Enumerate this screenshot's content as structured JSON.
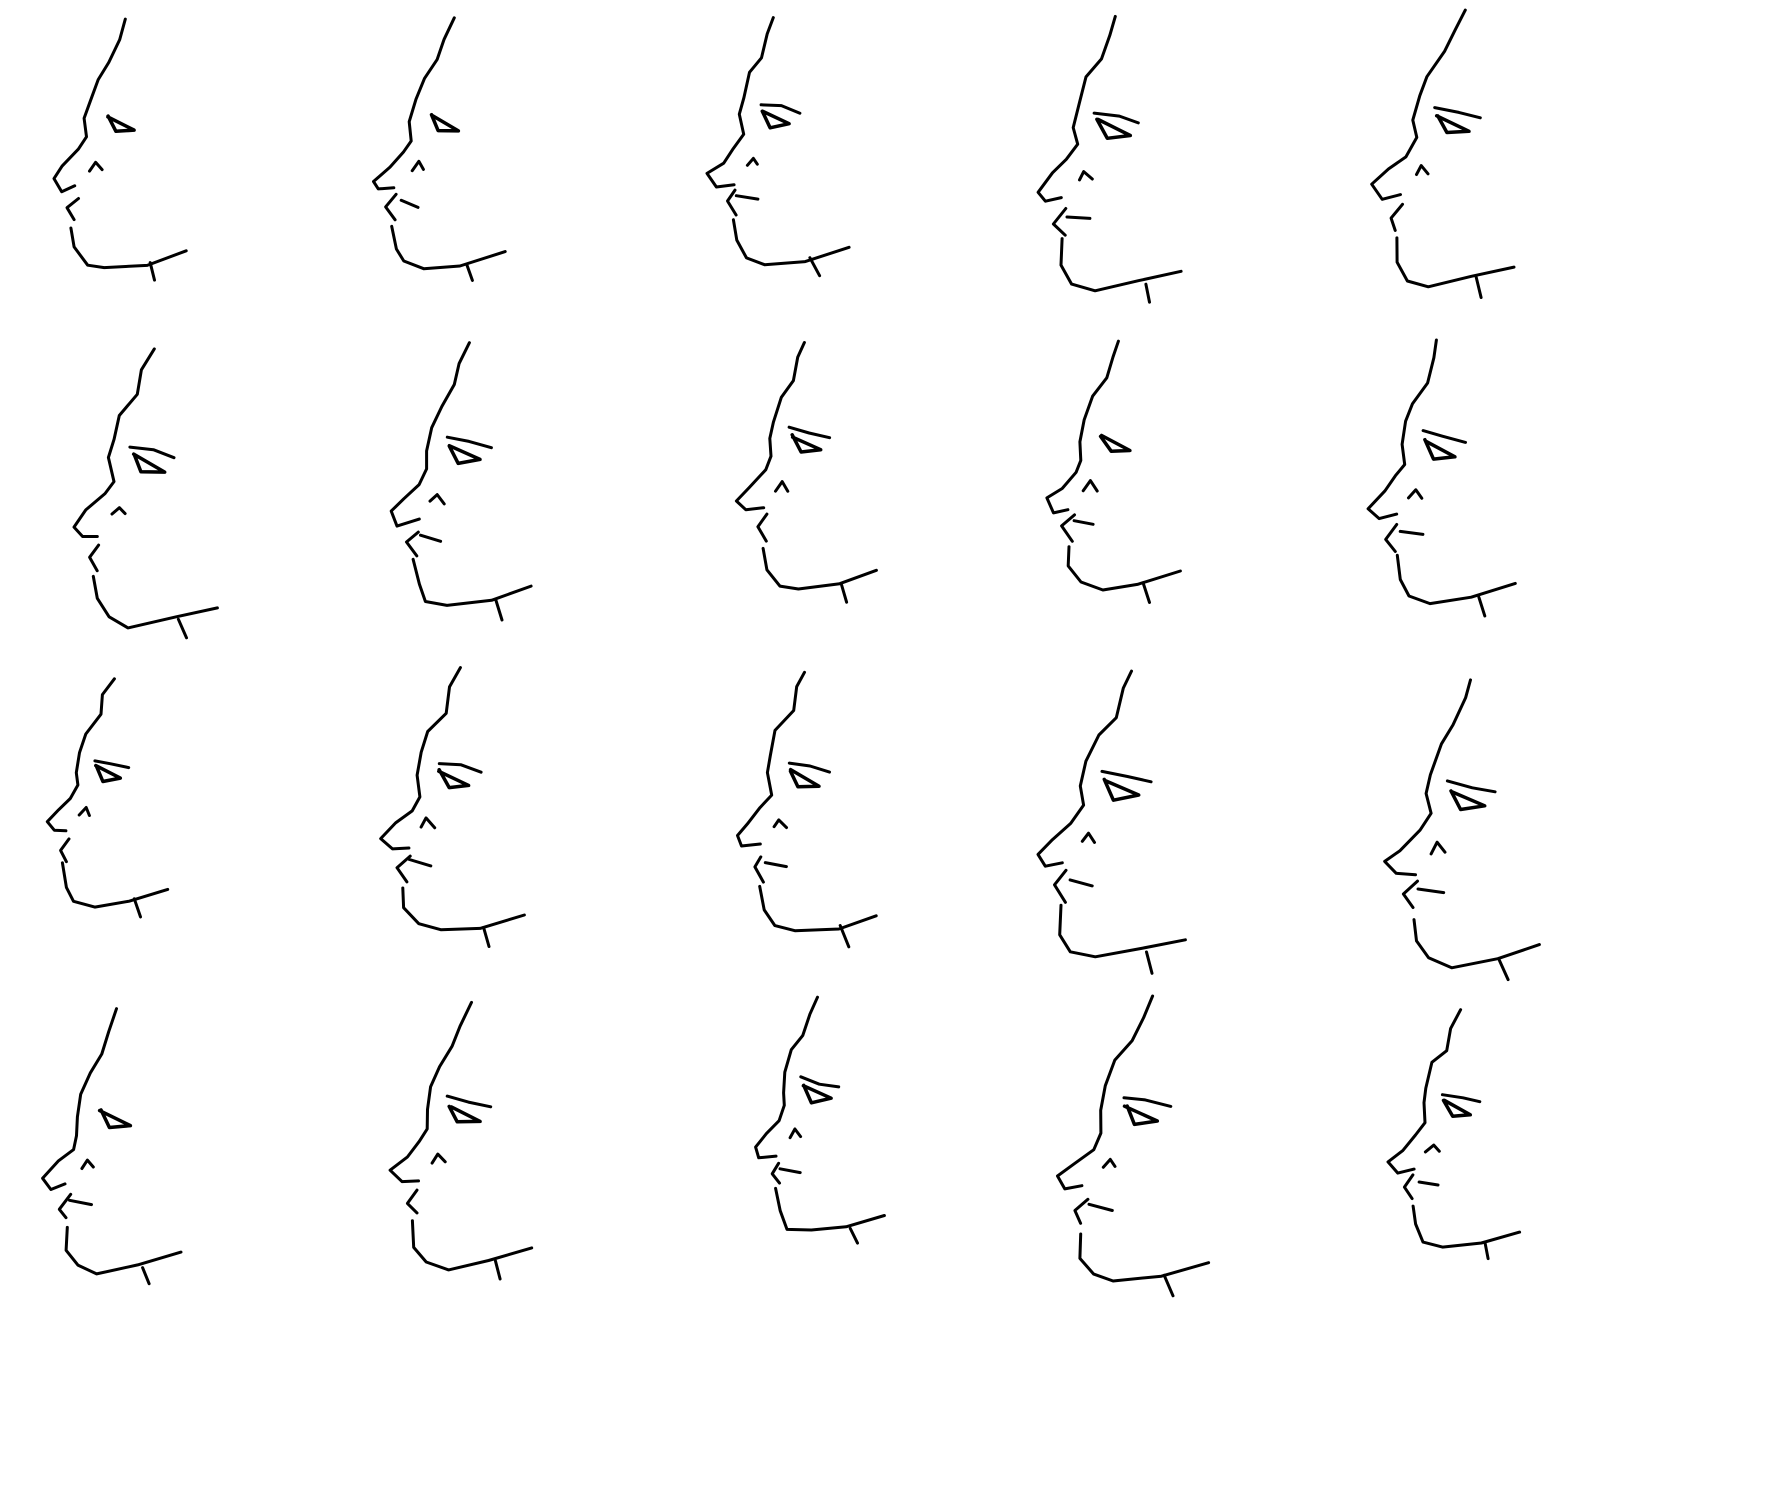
{
  "image": {
    "background": "#ffffff",
    "ink_color": "#000000",
    "subject": "face-profile-sketch",
    "rows": 4,
    "columns": 5,
    "sketch_count": 20
  }
}
